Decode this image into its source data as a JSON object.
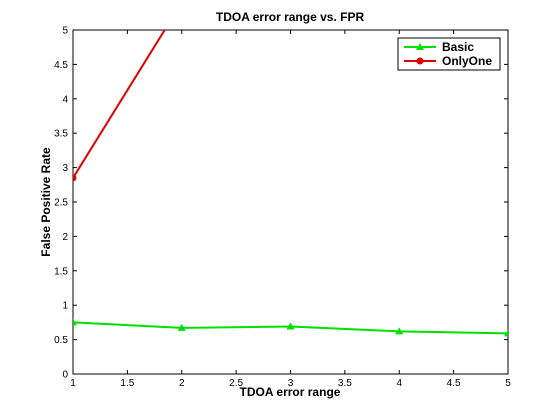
{
  "chart_data": {
    "type": "line",
    "title": "TDOA error range vs. FPR",
    "xlabel": "TDOA error range",
    "ylabel": "False Positive Rate",
    "xlim": [
      1,
      5
    ],
    "ylim": [
      0,
      5
    ],
    "xticks": [
      "1",
      "1.5",
      "2",
      "2.5",
      "3",
      "3.5",
      "4",
      "4.5",
      "5"
    ],
    "yticks": [
      "0",
      "0.5",
      "1",
      "1.5",
      "2",
      "2.5",
      "3",
      "3.5",
      "4",
      "4.5",
      "5"
    ],
    "grid": false,
    "legend_position": "top-right",
    "series": [
      {
        "name": "Basic",
        "color": "#00e000",
        "marker": "triangle",
        "x": [
          1,
          2,
          3,
          4,
          5
        ],
        "y": [
          0.75,
          0.67,
          0.69,
          0.62,
          0.59
        ]
      },
      {
        "name": "OnlyOne",
        "color": "#e00000",
        "marker": "circle",
        "x": [
          1,
          2
        ],
        "y": [
          2.85,
          5.4
        ]
      }
    ]
  }
}
